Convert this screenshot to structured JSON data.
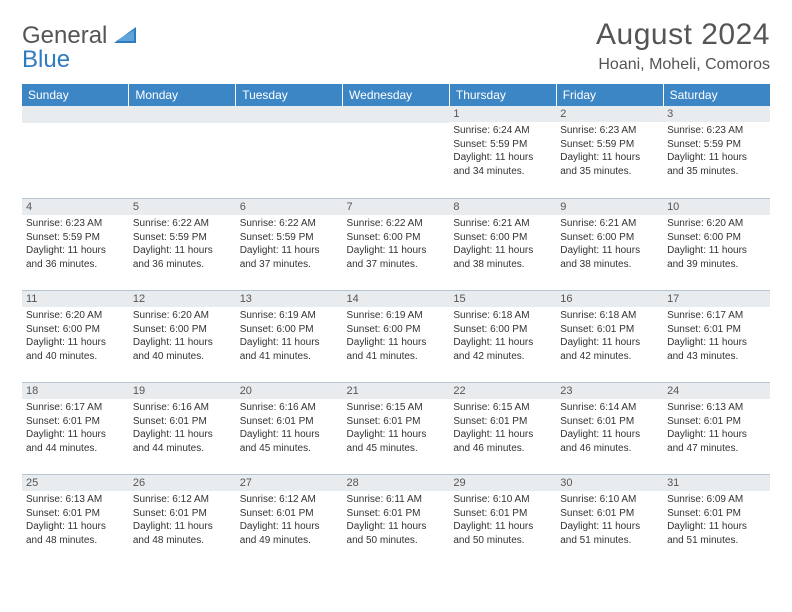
{
  "logo": {
    "line1": "General",
    "line2": "Blue"
  },
  "title": "August 2024",
  "location": "Hoani, Moheli, Comoros",
  "header_bg": "#3d86c6",
  "daynum_bg": "#e9ecef",
  "days": [
    "Sunday",
    "Monday",
    "Tuesday",
    "Wednesday",
    "Thursday",
    "Friday",
    "Saturday"
  ],
  "weeks": [
    [
      null,
      null,
      null,
      null,
      {
        "n": "1",
        "sunrise": "6:24 AM",
        "sunset": "5:59 PM",
        "dl": "11 hours and 34 minutes."
      },
      {
        "n": "2",
        "sunrise": "6:23 AM",
        "sunset": "5:59 PM",
        "dl": "11 hours and 35 minutes."
      },
      {
        "n": "3",
        "sunrise": "6:23 AM",
        "sunset": "5:59 PM",
        "dl": "11 hours and 35 minutes."
      }
    ],
    [
      {
        "n": "4",
        "sunrise": "6:23 AM",
        "sunset": "5:59 PM",
        "dl": "11 hours and 36 minutes."
      },
      {
        "n": "5",
        "sunrise": "6:22 AM",
        "sunset": "5:59 PM",
        "dl": "11 hours and 36 minutes."
      },
      {
        "n": "6",
        "sunrise": "6:22 AM",
        "sunset": "5:59 PM",
        "dl": "11 hours and 37 minutes."
      },
      {
        "n": "7",
        "sunrise": "6:22 AM",
        "sunset": "6:00 PM",
        "dl": "11 hours and 37 minutes."
      },
      {
        "n": "8",
        "sunrise": "6:21 AM",
        "sunset": "6:00 PM",
        "dl": "11 hours and 38 minutes."
      },
      {
        "n": "9",
        "sunrise": "6:21 AM",
        "sunset": "6:00 PM",
        "dl": "11 hours and 38 minutes."
      },
      {
        "n": "10",
        "sunrise": "6:20 AM",
        "sunset": "6:00 PM",
        "dl": "11 hours and 39 minutes."
      }
    ],
    [
      {
        "n": "11",
        "sunrise": "6:20 AM",
        "sunset": "6:00 PM",
        "dl": "11 hours and 40 minutes."
      },
      {
        "n": "12",
        "sunrise": "6:20 AM",
        "sunset": "6:00 PM",
        "dl": "11 hours and 40 minutes."
      },
      {
        "n": "13",
        "sunrise": "6:19 AM",
        "sunset": "6:00 PM",
        "dl": "11 hours and 41 minutes."
      },
      {
        "n": "14",
        "sunrise": "6:19 AM",
        "sunset": "6:00 PM",
        "dl": "11 hours and 41 minutes."
      },
      {
        "n": "15",
        "sunrise": "6:18 AM",
        "sunset": "6:00 PM",
        "dl": "11 hours and 42 minutes."
      },
      {
        "n": "16",
        "sunrise": "6:18 AM",
        "sunset": "6:01 PM",
        "dl": "11 hours and 42 minutes."
      },
      {
        "n": "17",
        "sunrise": "6:17 AM",
        "sunset": "6:01 PM",
        "dl": "11 hours and 43 minutes."
      }
    ],
    [
      {
        "n": "18",
        "sunrise": "6:17 AM",
        "sunset": "6:01 PM",
        "dl": "11 hours and 44 minutes."
      },
      {
        "n": "19",
        "sunrise": "6:16 AM",
        "sunset": "6:01 PM",
        "dl": "11 hours and 44 minutes."
      },
      {
        "n": "20",
        "sunrise": "6:16 AM",
        "sunset": "6:01 PM",
        "dl": "11 hours and 45 minutes."
      },
      {
        "n": "21",
        "sunrise": "6:15 AM",
        "sunset": "6:01 PM",
        "dl": "11 hours and 45 minutes."
      },
      {
        "n": "22",
        "sunrise": "6:15 AM",
        "sunset": "6:01 PM",
        "dl": "11 hours and 46 minutes."
      },
      {
        "n": "23",
        "sunrise": "6:14 AM",
        "sunset": "6:01 PM",
        "dl": "11 hours and 46 minutes."
      },
      {
        "n": "24",
        "sunrise": "6:13 AM",
        "sunset": "6:01 PM",
        "dl": "11 hours and 47 minutes."
      }
    ],
    [
      {
        "n": "25",
        "sunrise": "6:13 AM",
        "sunset": "6:01 PM",
        "dl": "11 hours and 48 minutes."
      },
      {
        "n": "26",
        "sunrise": "6:12 AM",
        "sunset": "6:01 PM",
        "dl": "11 hours and 48 minutes."
      },
      {
        "n": "27",
        "sunrise": "6:12 AM",
        "sunset": "6:01 PM",
        "dl": "11 hours and 49 minutes."
      },
      {
        "n": "28",
        "sunrise": "6:11 AM",
        "sunset": "6:01 PM",
        "dl": "11 hours and 50 minutes."
      },
      {
        "n": "29",
        "sunrise": "6:10 AM",
        "sunset": "6:01 PM",
        "dl": "11 hours and 50 minutes."
      },
      {
        "n": "30",
        "sunrise": "6:10 AM",
        "sunset": "6:01 PM",
        "dl": "11 hours and 51 minutes."
      },
      {
        "n": "31",
        "sunrise": "6:09 AM",
        "sunset": "6:01 PM",
        "dl": "11 hours and 51 minutes."
      }
    ]
  ],
  "labels": {
    "sunrise": "Sunrise: ",
    "sunset": "Sunset: ",
    "daylight": "Daylight: "
  }
}
